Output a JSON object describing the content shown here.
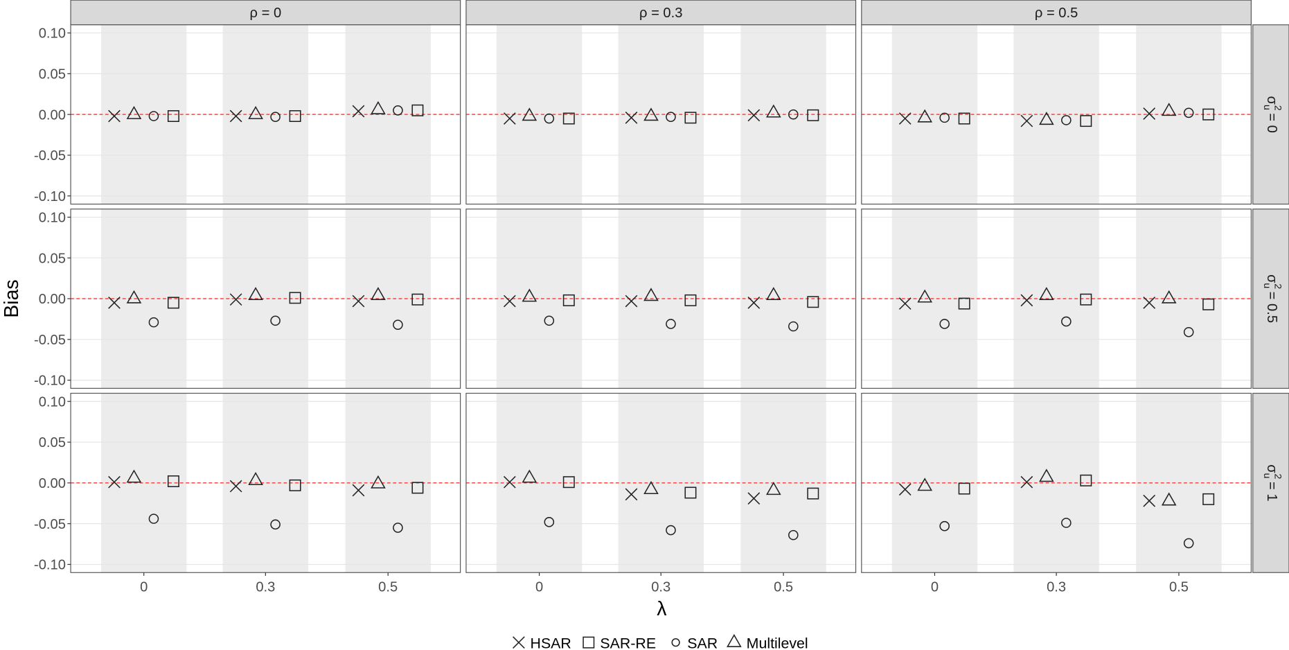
{
  "chart_data": {
    "type": "scatter",
    "title": "",
    "xlabel": "λ",
    "ylabel": "Bias",
    "ylim": [
      -0.11,
      0.11
    ],
    "yticks": [
      "0.10",
      "0.05",
      "0.00",
      "-0.05",
      "-0.10"
    ],
    "ytick_values": [
      0.1,
      0.05,
      0.0,
      -0.05,
      -0.1
    ],
    "categories": [
      "0",
      "0.3",
      "0.5"
    ],
    "reference_line": {
      "y": 0,
      "style": "dashed",
      "color": "#ff3333"
    },
    "grid": true,
    "legend_position": "bottom",
    "facet_cols": [
      {
        "label": "ρ = 0"
      },
      {
        "label": "ρ = 0.3"
      },
      {
        "label": "ρ = 0.5"
      }
    ],
    "facet_row_var": {
      "symbol": "σ",
      "sub": "u",
      "sup": "2"
    },
    "facet_rows": [
      {
        "label": "= 0"
      },
      {
        "label": "= 0.5"
      },
      {
        "label": "= 1"
      }
    ],
    "series": [
      {
        "name": "HSAR",
        "marker": "cross"
      },
      {
        "name": "SAR-RE",
        "marker": "square"
      },
      {
        "name": "SAR",
        "marker": "circle"
      },
      {
        "name": "Multilevel",
        "marker": "triangle"
      }
    ],
    "panel_values_note_order": [
      "HSAR",
      "Multilevel",
      "SAR",
      "SAR-RE"
    ],
    "panels": [
      [
        {
          "HSAR": [
            -0.002,
            -0.002,
            0.004
          ],
          "Multilevel": [
            0.0,
            0.0,
            0.006
          ],
          "SAR": [
            -0.002,
            -0.003,
            0.005
          ],
          "SAR-RE": [
            -0.002,
            -0.002,
            0.005
          ]
        },
        {
          "HSAR": [
            -0.005,
            -0.004,
            -0.001
          ],
          "Multilevel": [
            -0.002,
            -0.002,
            0.002
          ],
          "SAR": [
            -0.005,
            -0.003,
            0.0
          ],
          "SAR-RE": [
            -0.005,
            -0.004,
            -0.001
          ]
        },
        {
          "HSAR": [
            -0.005,
            -0.008,
            0.001
          ],
          "Multilevel": [
            -0.004,
            -0.007,
            0.004
          ],
          "SAR": [
            -0.004,
            -0.007,
            0.002
          ],
          "SAR-RE": [
            -0.005,
            -0.008,
            0.0
          ]
        }
      ],
      [
        {
          "HSAR": [
            -0.005,
            -0.001,
            -0.003
          ],
          "Multilevel": [
            0.0,
            0.004,
            0.004
          ],
          "SAR": [
            -0.029,
            -0.027,
            -0.032
          ],
          "SAR-RE": [
            -0.005,
            0.001,
            -0.001
          ]
        },
        {
          "HSAR": [
            -0.003,
            -0.003,
            -0.005
          ],
          "Multilevel": [
            0.002,
            0.003,
            0.004
          ],
          "SAR": [
            -0.027,
            -0.031,
            -0.034
          ],
          "SAR-RE": [
            -0.002,
            -0.002,
            -0.004
          ]
        },
        {
          "HSAR": [
            -0.006,
            -0.002,
            -0.005
          ],
          "Multilevel": [
            0.001,
            0.004,
            0.0
          ],
          "SAR": [
            -0.031,
            -0.028,
            -0.041
          ],
          "SAR-RE": [
            -0.006,
            -0.001,
            -0.007
          ]
        }
      ],
      [
        {
          "HSAR": [
            0.001,
            -0.004,
            -0.009
          ],
          "Multilevel": [
            0.006,
            0.003,
            -0.001
          ],
          "SAR": [
            -0.044,
            -0.051,
            -0.055
          ],
          "SAR-RE": [
            0.002,
            -0.003,
            -0.006
          ]
        },
        {
          "HSAR": [
            0.001,
            -0.014,
            -0.019
          ],
          "Multilevel": [
            0.006,
            -0.008,
            -0.009
          ],
          "SAR": [
            -0.048,
            -0.058,
            -0.064
          ],
          "SAR-RE": [
            0.001,
            -0.012,
            -0.013
          ]
        },
        {
          "HSAR": [
            -0.008,
            0.001,
            -0.022
          ],
          "Multilevel": [
            -0.004,
            0.007,
            -0.022
          ],
          "SAR": [
            -0.053,
            -0.049,
            -0.074
          ],
          "SAR-RE": [
            -0.007,
            0.003,
            -0.02
          ]
        }
      ]
    ]
  }
}
